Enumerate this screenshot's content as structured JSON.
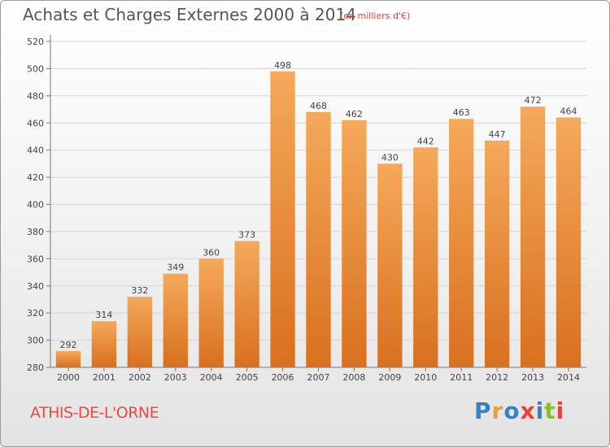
{
  "header": {
    "title": "Achats et Charges Externes 2000 à 2014",
    "subtitle": "(en milliers d'€)"
  },
  "footer": {
    "city": "ATHIS-DE-L'ORNE",
    "logo_text": "Proxiti",
    "logo_colors": [
      "#3b7fc4",
      "#f0a030",
      "#3b7fc4",
      "#e8413c",
      "#3b7fc4",
      "#8fbc2b",
      "#e8413c"
    ]
  },
  "chart_data": {
    "type": "bar",
    "title": "Achats et Charges Externes 2000 à 2014",
    "subtitle": "(en milliers d'€)",
    "categories": [
      "2000",
      "2001",
      "2002",
      "2003",
      "2004",
      "2005",
      "2006",
      "2007",
      "2008",
      "2009",
      "2010",
      "2011",
      "2012",
      "2013",
      "2014"
    ],
    "values": [
      292,
      314,
      332,
      349,
      360,
      373,
      498,
      468,
      462,
      430,
      442,
      463,
      447,
      472,
      464
    ],
    "xlabel": "",
    "ylabel": "",
    "ylim": [
      280,
      520
    ],
    "yticks": [
      280,
      300,
      320,
      340,
      360,
      380,
      400,
      420,
      440,
      460,
      480,
      500,
      520
    ],
    "grid": true,
    "legend": "none",
    "bar_color_top": "#f5a95a",
    "bar_color_bottom": "#d8701f"
  }
}
